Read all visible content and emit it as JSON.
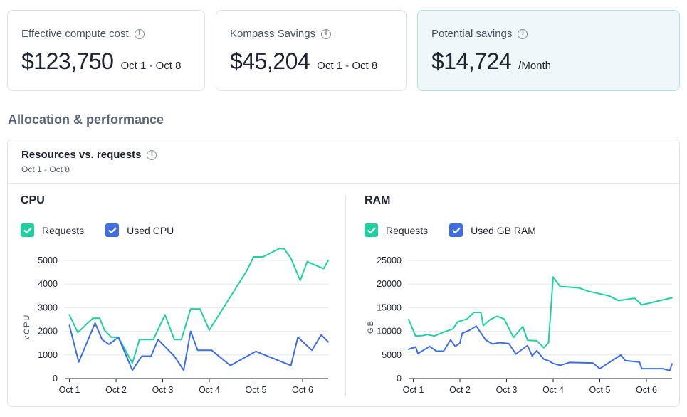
{
  "stats": [
    {
      "label": "Effective compute cost",
      "value": "$123,750",
      "range": "Oct 1 - Oct 8"
    },
    {
      "label": "Kompass Savings",
      "value": "$45,204",
      "range": "Oct 1 - Oct 8"
    },
    {
      "label": "Potential savings",
      "value": "$14,724",
      "range": "/Month"
    }
  ],
  "section_title": "Allocation & performance",
  "panel": {
    "title": "Resources vs. requests",
    "subtitle": "Oct 1 - Oct 8"
  },
  "colors": {
    "requests": "#1fd1a0",
    "used": "#3d6ee3"
  },
  "cpu": {
    "title": "CPU",
    "legend": {
      "requests": "Requests",
      "used": "Used CPU"
    }
  },
  "ram": {
    "title": "RAM",
    "legend": {
      "requests": "Requests",
      "used": "Used GB RAM"
    }
  },
  "chart_data": [
    {
      "type": "line",
      "title": "CPU",
      "xlabel": "",
      "ylabel": "vCPU",
      "xlim": [
        0.9,
        6.55
      ],
      "ylim": [
        0,
        5000
      ],
      "yticks": [
        0,
        1000,
        2000,
        3000,
        4000,
        5000
      ],
      "ytick_labels": [
        "0",
        "1000",
        "2000",
        "3000",
        "4000",
        "5000"
      ],
      "xticks": [
        1,
        2,
        3,
        4,
        5,
        6
      ],
      "xtick_labels": [
        "Oct 1",
        "Oct 2",
        "Oct 3",
        "Oct 4",
        "Oct 5",
        "Oct 6"
      ],
      "grid": true,
      "series": [
        {
          "name": "Requests",
          "color": "#1fd1a0",
          "points": [
            [
              1.0,
              2700
            ],
            [
              1.18,
              1950
            ],
            [
              1.5,
              2550
            ],
            [
              1.65,
              2550
            ],
            [
              1.75,
              2050
            ],
            [
              1.9,
              1750
            ],
            [
              2.05,
              1750
            ],
            [
              2.35,
              650
            ],
            [
              2.5,
              1650
            ],
            [
              2.8,
              1650
            ],
            [
              3.05,
              2700
            ],
            [
              3.25,
              1650
            ],
            [
              3.4,
              1650
            ],
            [
              3.6,
              2950
            ],
            [
              3.8,
              2950
            ],
            [
              4.0,
              2050
            ],
            [
              4.8,
              4550
            ],
            [
              4.95,
              5150
            ],
            [
              5.15,
              5150
            ],
            [
              5.5,
              5500
            ],
            [
              5.6,
              5500
            ],
            [
              5.75,
              5100
            ],
            [
              5.95,
              4150
            ],
            [
              6.1,
              4950
            ],
            [
              6.45,
              4650
            ],
            [
              6.55,
              5000
            ]
          ]
        },
        {
          "name": "Used CPU",
          "color": "#3d6ee3",
          "points": [
            [
              1.0,
              2250
            ],
            [
              1.2,
              700
            ],
            [
              1.55,
              2350
            ],
            [
              1.7,
              1650
            ],
            [
              1.85,
              1450
            ],
            [
              2.05,
              1750
            ],
            [
              2.35,
              350
            ],
            [
              2.55,
              950
            ],
            [
              2.75,
              950
            ],
            [
              2.9,
              1650
            ],
            [
              3.25,
              950
            ],
            [
              3.45,
              350
            ],
            [
              3.6,
              2000
            ],
            [
              3.75,
              1200
            ],
            [
              4.05,
              1200
            ],
            [
              4.45,
              550
            ],
            [
              5.0,
              1150
            ],
            [
              5.75,
              550
            ],
            [
              5.9,
              1750
            ],
            [
              6.2,
              1200
            ],
            [
              6.4,
              1850
            ],
            [
              6.55,
              1550
            ]
          ]
        }
      ]
    },
    {
      "type": "line",
      "title": "RAM",
      "xlabel": "",
      "ylabel": "GB",
      "xlim": [
        0.9,
        6.55
      ],
      "ylim": [
        0,
        25000
      ],
      "yticks": [
        0,
        5000,
        10000,
        15000,
        20000,
        25000
      ],
      "ytick_labels": [
        "0",
        "5000",
        "10000",
        "15000",
        "20000",
        "25000"
      ],
      "xticks": [
        1,
        2,
        3,
        4,
        5,
        6
      ],
      "xtick_labels": [
        "Oct 1",
        "Oct 2",
        "Oct 3",
        "Oct 4",
        "Oct 5",
        "Oct 6"
      ],
      "grid": true,
      "series": [
        {
          "name": "Requests",
          "color": "#1fd1a0",
          "points": [
            [
              0.9,
              12500
            ],
            [
              1.05,
              9000
            ],
            [
              1.2,
              9100
            ],
            [
              1.3,
              9300
            ],
            [
              1.45,
              9000
            ],
            [
              1.7,
              10000
            ],
            [
              1.85,
              10500
            ],
            [
              1.95,
              12000
            ],
            [
              2.15,
              12600
            ],
            [
              2.3,
              14000
            ],
            [
              2.45,
              14000
            ],
            [
              2.5,
              11200
            ],
            [
              2.65,
              12500
            ],
            [
              2.8,
              13200
            ],
            [
              2.95,
              12600
            ],
            [
              3.15,
              8700
            ],
            [
              3.35,
              11000
            ],
            [
              3.45,
              8100
            ],
            [
              3.65,
              8000
            ],
            [
              3.8,
              6500
            ],
            [
              3.9,
              7600
            ],
            [
              4.0,
              21500
            ],
            [
              4.15,
              19500
            ],
            [
              4.55,
              19200
            ],
            [
              4.75,
              18500
            ],
            [
              5.2,
              17500
            ],
            [
              5.4,
              16500
            ],
            [
              5.75,
              17000
            ],
            [
              5.9,
              15600
            ],
            [
              6.55,
              17100
            ]
          ]
        },
        {
          "name": "Used GB RAM",
          "color": "#3d6ee3",
          "points": [
            [
              0.9,
              6200
            ],
            [
              1.05,
              6700
            ],
            [
              1.1,
              5300
            ],
            [
              1.35,
              6800
            ],
            [
              1.5,
              5800
            ],
            [
              1.65,
              5800
            ],
            [
              1.8,
              8200
            ],
            [
              1.9,
              6800
            ],
            [
              2.0,
              7500
            ],
            [
              2.05,
              9600
            ],
            [
              2.2,
              10200
            ],
            [
              2.35,
              11100
            ],
            [
              2.55,
              8200
            ],
            [
              2.7,
              7300
            ],
            [
              2.85,
              7600
            ],
            [
              3.05,
              7400
            ],
            [
              3.2,
              5200
            ],
            [
              3.45,
              7000
            ],
            [
              3.55,
              4800
            ],
            [
              3.65,
              5900
            ],
            [
              3.8,
              4100
            ],
            [
              3.9,
              3800
            ],
            [
              4.0,
              3200
            ],
            [
              4.15,
              2800
            ],
            [
              4.35,
              3400
            ],
            [
              4.85,
              3300
            ],
            [
              5.0,
              2100
            ],
            [
              5.45,
              5000
            ],
            [
              5.55,
              3800
            ],
            [
              5.85,
              3500
            ],
            [
              5.9,
              2100
            ],
            [
              6.35,
              2100
            ],
            [
              6.5,
              1700
            ],
            [
              6.55,
              3100
            ]
          ]
        }
      ]
    }
  ]
}
